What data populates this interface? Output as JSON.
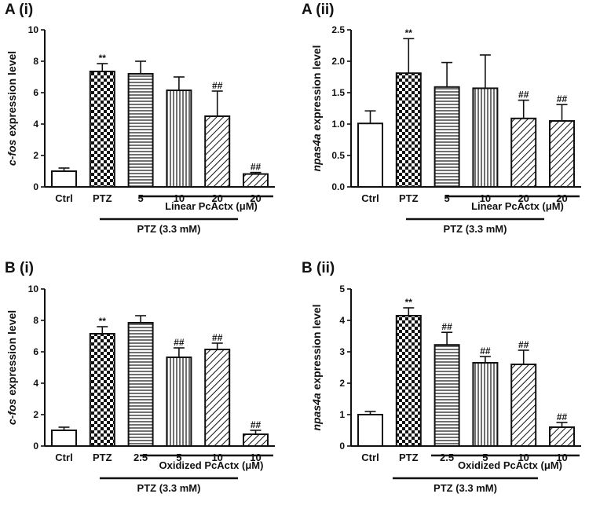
{
  "chart_data": [
    {
      "type": "bar",
      "panel_label": "A (i)",
      "ylabel_italic": "c-fos",
      "ylabel_rest": " expression level",
      "ylim": [
        0,
        10
      ],
      "yticks": [
        "0",
        "2",
        "4",
        "6",
        "8",
        "10"
      ],
      "categories": [
        "Ctrl",
        "PTZ",
        "5",
        "10",
        "20",
        "20"
      ],
      "values": [
        1.0,
        7.35,
        7.2,
        6.15,
        4.5,
        0.82
      ],
      "errors": [
        0.2,
        0.5,
        0.8,
        0.85,
        1.6,
        0.1
      ],
      "annotations": [
        "",
        "**",
        "",
        "",
        "##",
        "##"
      ],
      "patterns": [
        "none",
        "check",
        "hlines",
        "vlines",
        "diag",
        "diag"
      ],
      "group_label": "Linear PcActx (μM)",
      "ptz_label": "PTZ (3.3 mM)"
    },
    {
      "type": "bar",
      "panel_label": "A (ii)",
      "ylabel_italic": "npas4a",
      "ylabel_rest": " expression level",
      "ylim": [
        0,
        2.5
      ],
      "yticks": [
        "0.0",
        "0.5",
        "1.0",
        "1.5",
        "2.0",
        "2.5"
      ],
      "categories": [
        "Ctrl",
        "PTZ",
        "5",
        "10",
        "20",
        "20"
      ],
      "values": [
        1.01,
        1.81,
        1.59,
        1.57,
        1.09,
        1.05
      ],
      "errors": [
        0.2,
        0.55,
        0.39,
        0.53,
        0.29,
        0.26
      ],
      "annotations": [
        "",
        "**",
        "",
        "",
        "##",
        "##"
      ],
      "patterns": [
        "none",
        "check",
        "hlines",
        "vlines",
        "diag",
        "diag"
      ],
      "group_label": "Linear PcActx (μM)",
      "ptz_label": "PTZ (3.3 mM)"
    },
    {
      "type": "bar",
      "panel_label": "B (i)",
      "ylabel_italic": "c-fos",
      "ylabel_rest": " expression level",
      "ylim": [
        0,
        10
      ],
      "yticks": [
        "0",
        "2",
        "4",
        "6",
        "8",
        "10"
      ],
      "categories": [
        "Ctrl",
        "PTZ",
        "2.5",
        "5",
        "10",
        "10"
      ],
      "values": [
        1.0,
        7.15,
        7.85,
        5.65,
        6.15,
        0.75
      ],
      "errors": [
        0.2,
        0.45,
        0.45,
        0.6,
        0.4,
        0.25
      ],
      "annotations": [
        "",
        "**",
        "",
        "##",
        "##",
        "##"
      ],
      "patterns": [
        "none",
        "check",
        "hlines",
        "vlines",
        "diag",
        "diag"
      ],
      "group_label": "Oxidized PcActx (μM)",
      "ptz_label": "PTZ (3.3 mM)"
    },
    {
      "type": "bar",
      "panel_label": "B (ii)",
      "ylabel_italic": "npas4a",
      "ylabel_rest": " expression level",
      "ylim": [
        0,
        5
      ],
      "yticks": [
        "0",
        "1",
        "2",
        "3",
        "4",
        "5"
      ],
      "categories": [
        "Ctrl",
        "PTZ",
        "2.5",
        "5",
        "10",
        "10"
      ],
      "values": [
        1.0,
        4.15,
        3.22,
        2.65,
        2.6,
        0.6
      ],
      "errors": [
        0.1,
        0.25,
        0.4,
        0.2,
        0.45,
        0.15
      ],
      "annotations": [
        "",
        "**",
        "##",
        "##",
        "##",
        "##"
      ],
      "patterns": [
        "none",
        "check",
        "hlines",
        "vlines",
        "diag",
        "diag"
      ],
      "group_label": "Oxidized PcActx (μM)",
      "ptz_label": "PTZ (3.3 mM)"
    }
  ]
}
